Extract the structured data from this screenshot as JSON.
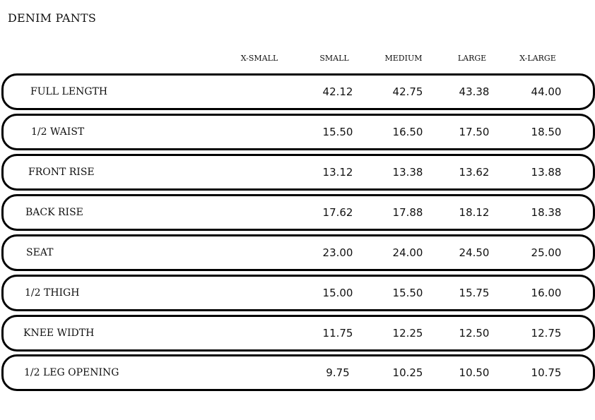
{
  "title": "DENIM PANTS",
  "columns": [
    "X-SMALL",
    "SMALL",
    "MEDIUM",
    "LARGE",
    "X-LARGE"
  ],
  "rows": [
    {
      "label": "FULL LENGTH",
      "values": [
        "",
        "42.12",
        "42.75",
        "43.38",
        "44.00"
      ]
    },
    {
      "label": "1/2 WAIST",
      "values": [
        "",
        "15.50",
        "16.50",
        "17.50",
        "18.50"
      ]
    },
    {
      "label": "FRONT RISE",
      "values": [
        "",
        "13.12",
        "13.38",
        "13.62",
        "13.88"
      ]
    },
    {
      "label": "BACK RISE",
      "values": [
        "",
        "17.62",
        "17.88",
        "18.12",
        "18.38"
      ]
    },
    {
      "label": "SEAT",
      "values": [
        "",
        "23.00",
        "24.00",
        "24.50",
        "25.00"
      ]
    },
    {
      "label": "1/2 THIGH",
      "values": [
        "",
        "15.00",
        "15.50",
        "15.75",
        "16.00"
      ]
    },
    {
      "label": "KNEE WIDTH",
      "values": [
        "",
        "11.75",
        "12.25",
        "12.50",
        "12.75"
      ]
    },
    {
      "label": "1/2 LEG OPENING",
      "values": [
        "",
        "9.75",
        "10.25",
        "10.50",
        "10.75"
      ]
    }
  ]
}
